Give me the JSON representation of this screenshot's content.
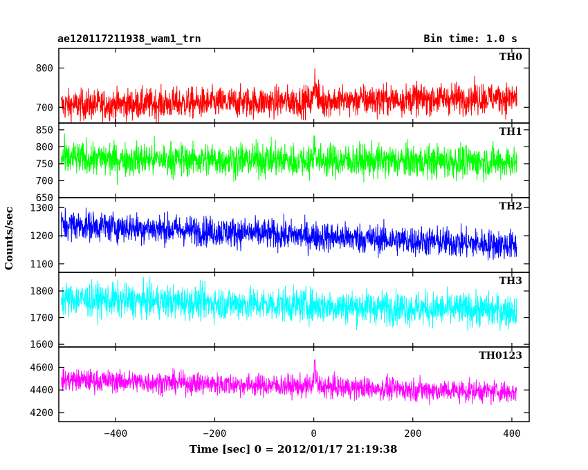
{
  "header": {
    "title": "ae120117211938_wam1_trn",
    "bin_time": "Bin time: 1.0 s"
  },
  "chart_data": {
    "type": "line",
    "xlabel": "Time [sec] 0 = 2012/01/17 21:19:38",
    "ylabel": "Counts/sec",
    "xlim": [
      -515,
      435
    ],
    "x_ticks": [
      -400,
      -200,
      0,
      200,
      400
    ],
    "x_tick_labels": [
      "−400",
      "−200",
      "0",
      "200",
      "400"
    ],
    "x_range_data": [
      -510,
      410
    ],
    "grid": false,
    "panels": [
      {
        "name": "TH0",
        "color": "#ff0000",
        "ylim": [
          660,
          850
        ],
        "y_ticks": [
          700,
          800
        ],
        "mean": 705,
        "trend_end": 725,
        "amplitude": 28,
        "burst": 70
      },
      {
        "name": "TH1",
        "color": "#00ff00",
        "ylim": [
          650,
          870
        ],
        "y_ticks": [
          650,
          700,
          750,
          800,
          850
        ],
        "mean": 765,
        "trend_end": 755,
        "amplitude": 35,
        "burst": 60
      },
      {
        "name": "TH2",
        "color": "#0000ff",
        "ylim": [
          1070,
          1335
        ],
        "y_ticks": [
          1100,
          1200,
          1300
        ],
        "mean": 1240,
        "trend_end": 1165,
        "amplitude": 38,
        "burst": 0
      },
      {
        "name": "TH3",
        "color": "#00ffff",
        "ylim": [
          1590,
          1870
        ],
        "y_ticks": [
          1600,
          1700,
          1800
        ],
        "mean": 1770,
        "trend_end": 1725,
        "amplitude": 45,
        "burst": 0
      },
      {
        "name": "TH0123",
        "color": "#ff00ff",
        "ylim": [
          4120,
          4780
        ],
        "y_ticks": [
          4200,
          4400,
          4600
        ],
        "mean": 4490,
        "trend_end": 4380,
        "amplitude": 70,
        "burst": 200
      }
    ]
  }
}
